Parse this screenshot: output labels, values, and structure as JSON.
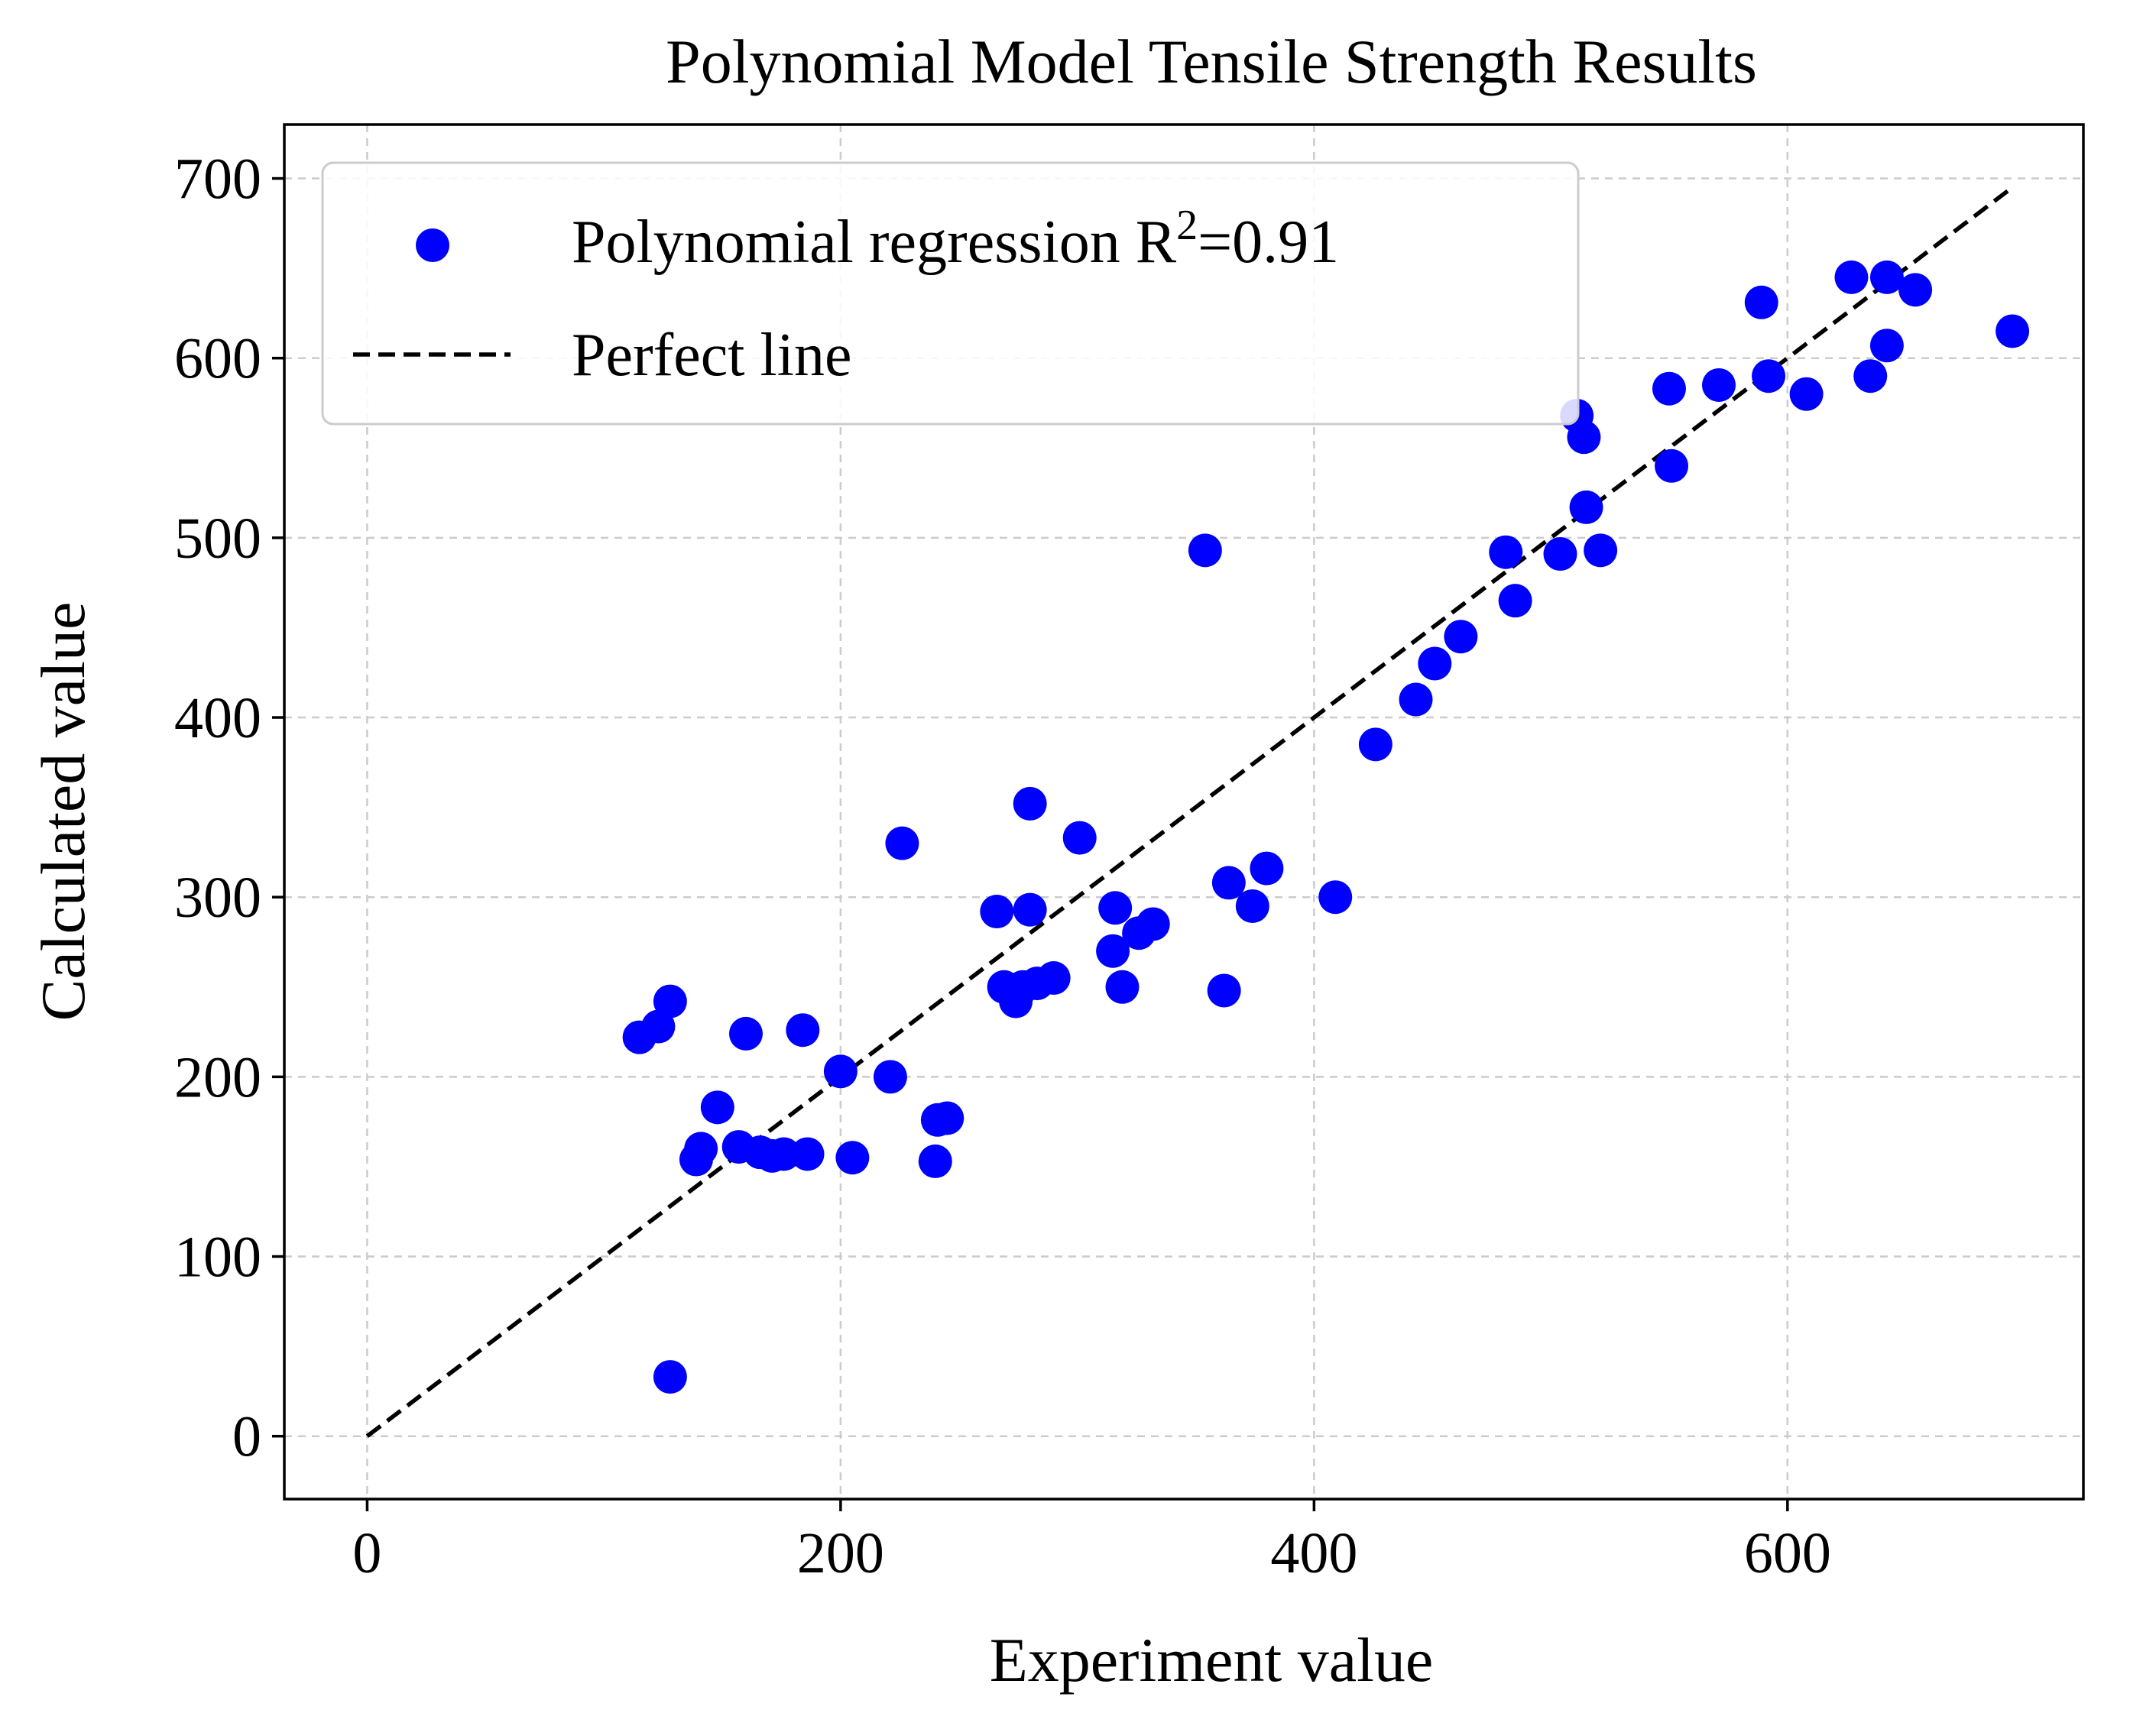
{
  "chart_data": {
    "type": "scatter",
    "title": "Polynomial Model Tensile Strength Results",
    "xlabel": "Experiment value",
    "ylabel": "Calculated value",
    "xlim": [
      -35,
      725
    ],
    "ylim": [
      -35,
      730
    ],
    "xticks": [
      0,
      200,
      400,
      600
    ],
    "yticks": [
      0,
      100,
      200,
      300,
      400,
      500,
      600,
      700
    ],
    "grid": true,
    "legend_position": "top-left",
    "colors": {
      "points": "#0000ff",
      "line": "#000000",
      "grid": "#cccccc"
    },
    "series": [
      {
        "name": "Polynomial regression",
        "legend_text": "Polynomial regression R",
        "legend_sup": "2",
        "legend_suffix": "=0.91",
        "kind": "points",
        "points": [
          [
            115,
            222
          ],
          [
            123,
            228
          ],
          [
            128,
            242
          ],
          [
            128,
            33
          ],
          [
            139,
            154
          ],
          [
            141,
            160
          ],
          [
            148,
            183
          ],
          [
            157,
            161
          ],
          [
            160,
            224
          ],
          [
            166,
            158
          ],
          [
            171,
            156
          ],
          [
            176,
            157
          ],
          [
            184,
            226
          ],
          [
            186,
            157
          ],
          [
            200,
            203
          ],
          [
            205,
            155
          ],
          [
            221,
            200
          ],
          [
            226,
            330
          ],
          [
            240,
            153
          ],
          [
            241,
            176
          ],
          [
            245,
            177
          ],
          [
            266,
            292
          ],
          [
            269,
            250
          ],
          [
            274,
            242
          ],
          [
            277,
            250
          ],
          [
            280,
            293
          ],
          [
            280,
            352
          ],
          [
            283,
            252
          ],
          [
            290,
            255
          ],
          [
            301,
            333
          ],
          [
            315,
            270
          ],
          [
            316,
            294
          ],
          [
            319,
            250
          ],
          [
            326,
            280
          ],
          [
            332,
            285
          ],
          [
            354,
            493
          ],
          [
            362,
            248
          ],
          [
            364,
            308
          ],
          [
            374,
            295
          ],
          [
            380,
            316
          ],
          [
            409,
            300
          ],
          [
            426,
            385
          ],
          [
            443,
            410
          ],
          [
            451,
            430
          ],
          [
            462,
            445
          ],
          [
            481,
            492
          ],
          [
            485,
            465
          ],
          [
            504,
            491
          ],
          [
            511,
            568
          ],
          [
            514,
            556
          ],
          [
            515,
            517
          ],
          [
            521,
            493
          ],
          [
            550,
            583
          ],
          [
            551,
            540
          ],
          [
            571,
            585
          ],
          [
            589,
            631
          ],
          [
            592,
            590
          ],
          [
            608,
            580
          ],
          [
            627,
            645
          ],
          [
            635,
            590
          ],
          [
            642,
            645
          ],
          [
            642,
            607
          ],
          [
            654,
            638
          ],
          [
            695,
            615
          ]
        ]
      },
      {
        "name": "Perfect line",
        "legend_text": "Perfect line",
        "kind": "line",
        "points": [
          [
            0,
            0
          ],
          [
            695,
            695
          ]
        ]
      }
    ]
  }
}
